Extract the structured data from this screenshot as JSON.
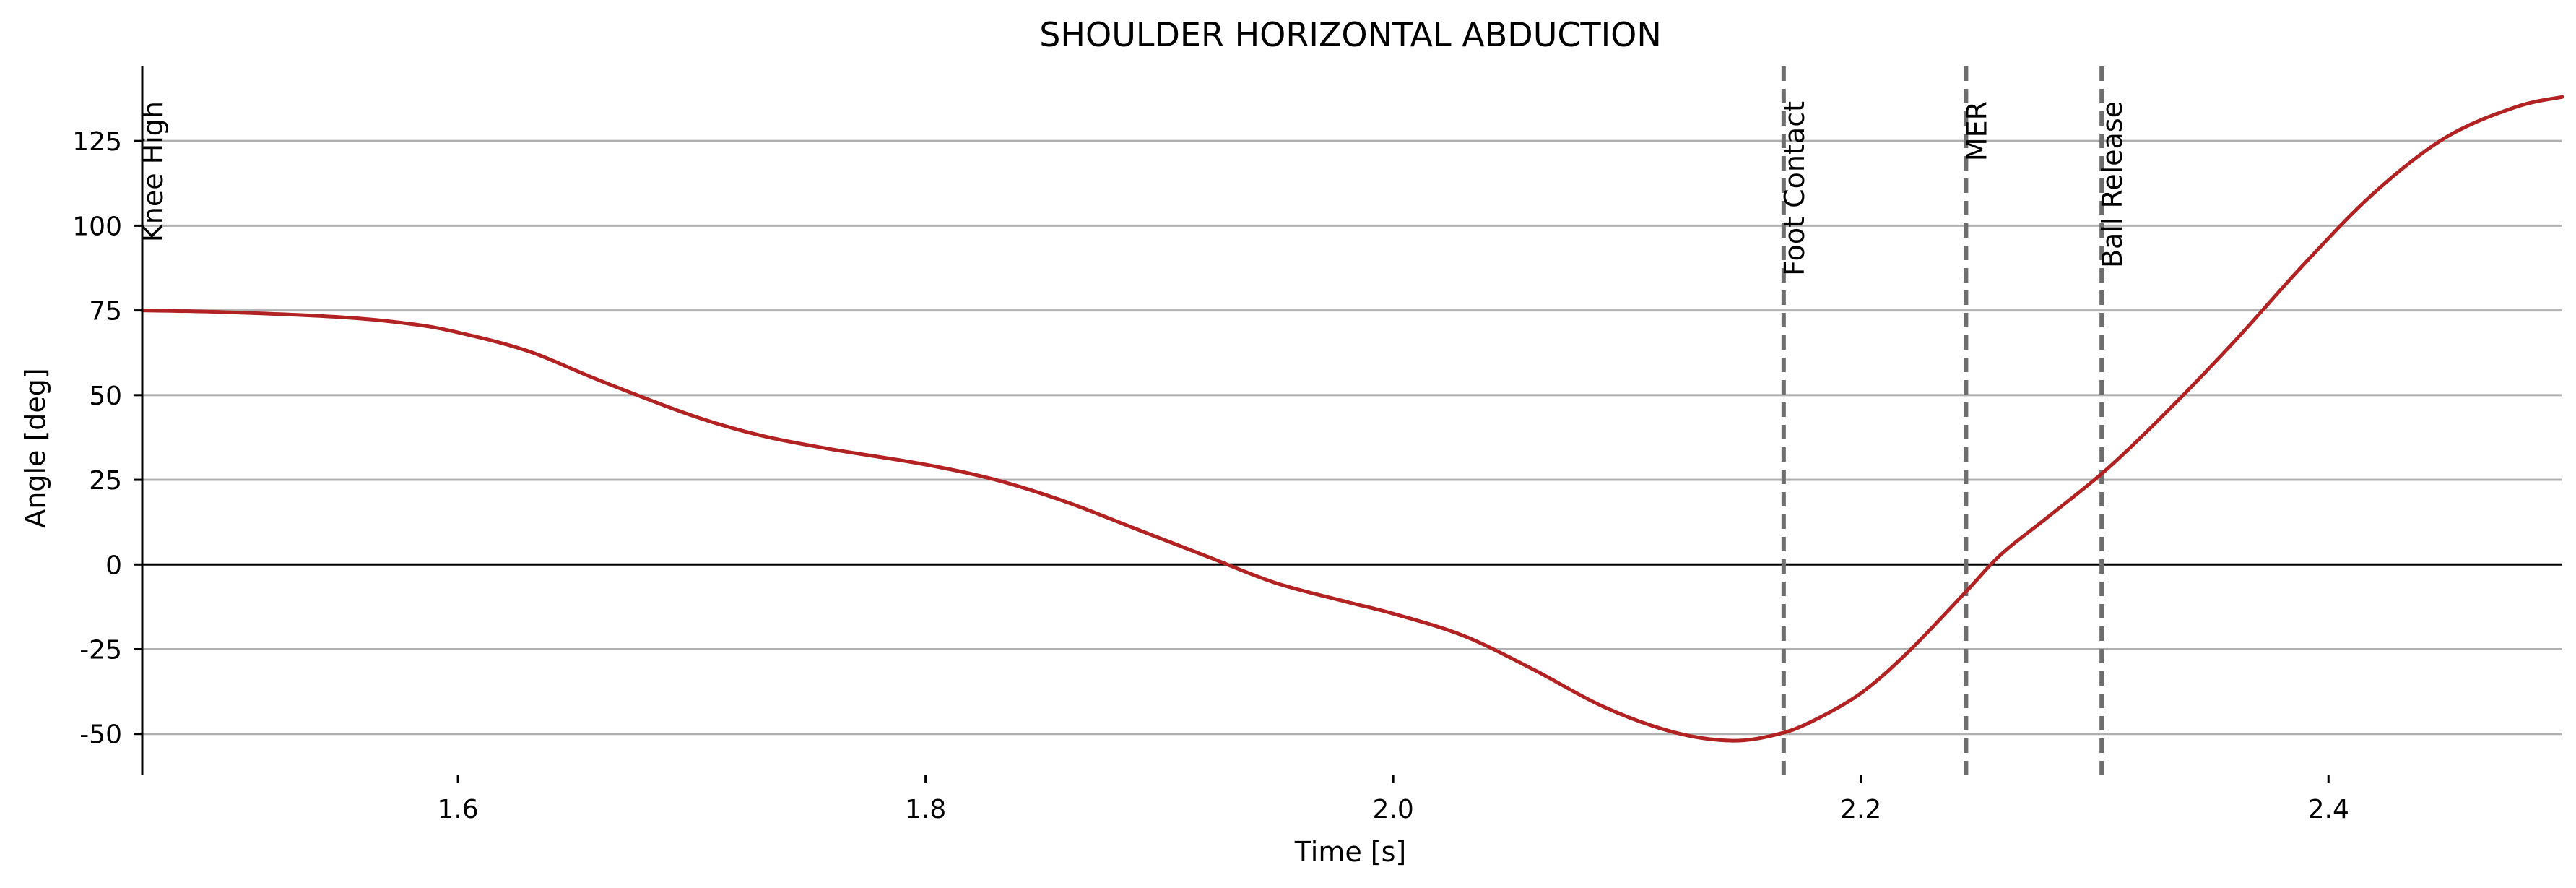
{
  "chart_data": {
    "type": "line",
    "title": "SHOULDER HORIZONTAL ABDUCTION",
    "xlabel": "Time [s]",
    "ylabel": "Angle [deg]",
    "xlim": [
      1.465,
      2.5
    ],
    "ylim": [
      -62,
      147
    ],
    "x_ticks": [
      1.6,
      1.8,
      2.0,
      2.2,
      2.4
    ],
    "x_tick_labels": [
      "1.6",
      "1.8",
      "2.0",
      "2.2",
      "2.4"
    ],
    "y_ticks": [
      125,
      100,
      75,
      50,
      25,
      0,
      -25,
      -50
    ],
    "y_tick_labels": [
      "125",
      "100",
      "75",
      "50",
      "25",
      "0",
      "-25",
      "-50"
    ],
    "grid": "horizontal",
    "zero_line": true,
    "colors": {
      "series": "#b22222",
      "events": "#6e6e6e",
      "grid": "#b0b0b0"
    },
    "series": [
      {
        "x": [
          1.465,
          1.5,
          1.55,
          1.58,
          1.6,
          1.63,
          1.66,
          1.7,
          1.73,
          1.76,
          1.8,
          1.83,
          1.86,
          1.89,
          1.92,
          1.95,
          1.98,
          2.0,
          2.03,
          2.06,
          2.09,
          2.12,
          2.145,
          2.165,
          2.18,
          2.2,
          2.22,
          2.245,
          2.26,
          2.28,
          2.305,
          2.33,
          2.36,
          2.39,
          2.42,
          2.45,
          2.48,
          2.5
        ],
        "y": [
          75,
          74.5,
          73,
          71,
          68.5,
          63,
          54.5,
          44,
          38,
          34,
          29.5,
          25,
          18.5,
          10.5,
          2.5,
          -5.5,
          -11,
          -14.5,
          -21,
          -31,
          -42,
          -49.5,
          -52,
          -50,
          -46,
          -38,
          -26,
          -8,
          3,
          14,
          28,
          44.5,
          66,
          89,
          110,
          126,
          135,
          138
        ]
      }
    ],
    "events": [
      {
        "label": "Knee High",
        "x": 1.465
      },
      {
        "label": "Foot Contact",
        "x": 2.167
      },
      {
        "label": "MER",
        "x": 2.245
      },
      {
        "label": "Ball Release",
        "x": 2.303
      }
    ]
  }
}
